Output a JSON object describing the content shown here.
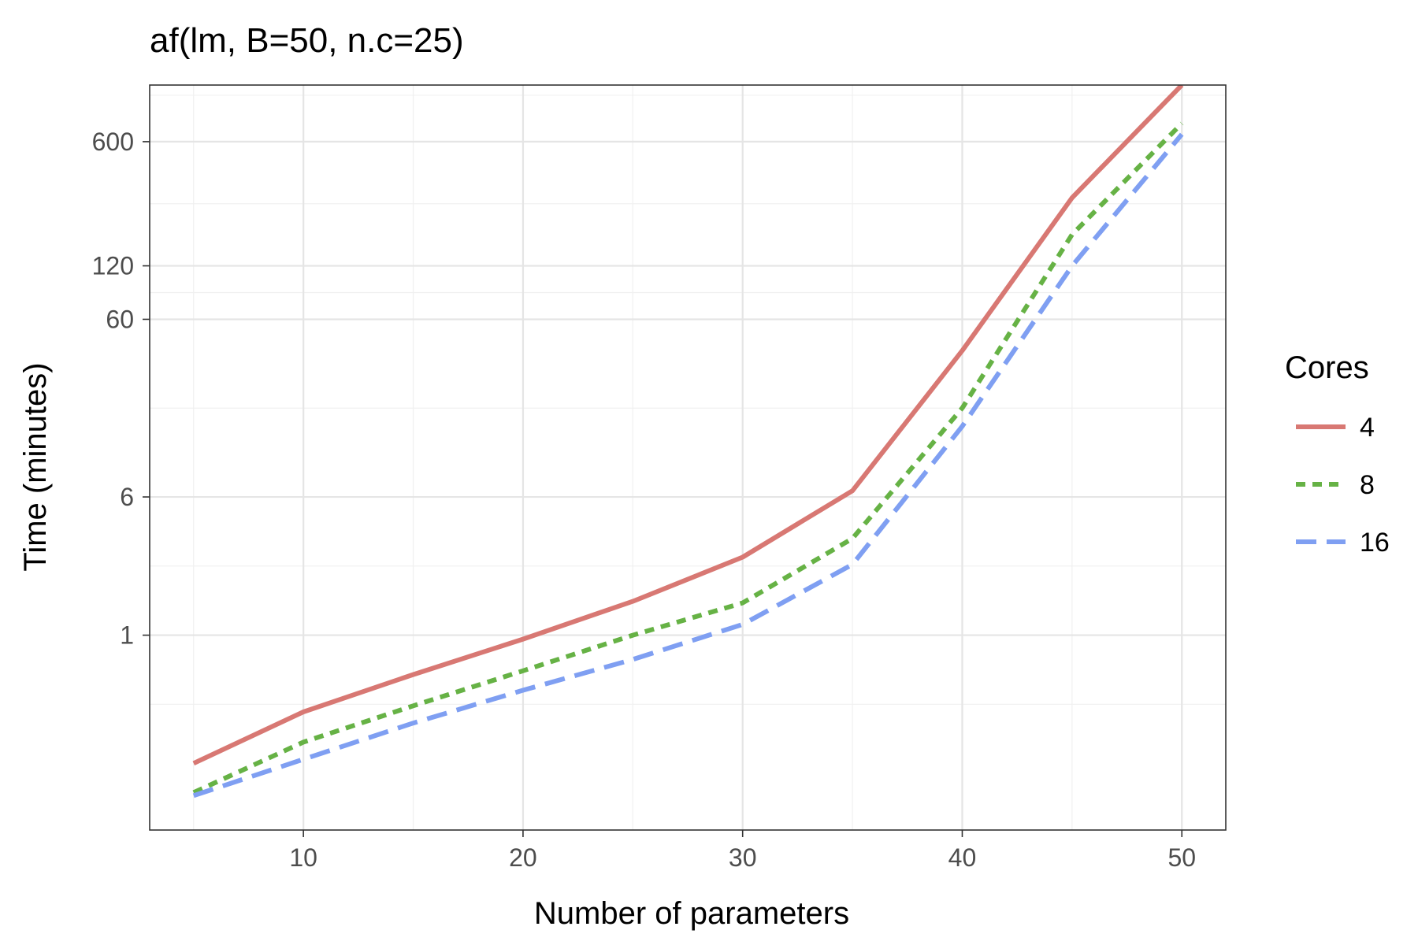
{
  "chart_data": {
    "type": "line",
    "title": "af(lm, B=50, n.c=25)",
    "xlabel": "Number of parameters",
    "ylabel": "Time (minutes)",
    "yscale": "log",
    "xlim": [
      3,
      52
    ],
    "ylim": [
      0.08,
      1250
    ],
    "x_ticks": [
      10,
      20,
      30,
      40,
      50
    ],
    "x_tick_labels": [
      "10",
      "20",
      "30",
      "40",
      "50"
    ],
    "y_ticks": [
      1,
      6,
      60,
      120,
      600
    ],
    "y_tick_labels": [
      "1",
      "6",
      "60",
      "120",
      "600"
    ],
    "legend_title": "Cores",
    "legend_position": "right",
    "grid": true,
    "x": [
      5,
      10,
      15,
      20,
      25,
      30,
      35,
      40,
      45,
      50
    ],
    "series": [
      {
        "name": "4",
        "color": "#d87873",
        "dash": "solid",
        "values": [
          0.19,
          0.37,
          0.6,
          0.95,
          1.55,
          2.75,
          6.5,
          40,
          290,
          1250
        ]
      },
      {
        "name": "8",
        "color": "#66b245",
        "dash": "dotted",
        "values": [
          0.13,
          0.25,
          0.4,
          0.63,
          1.0,
          1.52,
          3.5,
          19,
          180,
          760
        ]
      },
      {
        "name": "16",
        "color": "#7f9ff2",
        "dash": "dashed",
        "values": [
          0.125,
          0.2,
          0.32,
          0.49,
          0.73,
          1.15,
          2.5,
          15,
          120,
          660
        ]
      }
    ]
  }
}
